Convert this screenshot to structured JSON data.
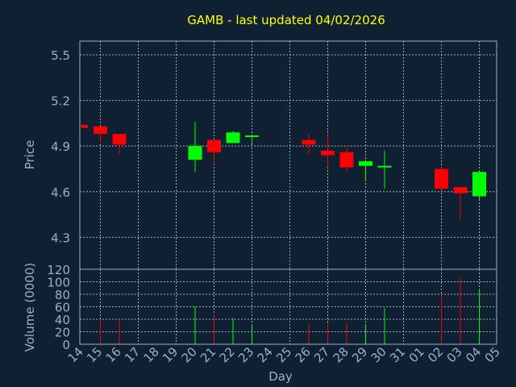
{
  "colors": {
    "background": "#0f2033",
    "plot_border": "#9bb0c8",
    "grid": "#9bb0c8",
    "title": "#ffff00",
    "axis_text": "#9bb0c8",
    "up": "#00ff00",
    "down": "#ff0000"
  },
  "chart_data": [
    {
      "type": "candlestick",
      "title": "GAMB - last updated 04/02/2026",
      "ylabel": "Price",
      "ylim": [
        4.09,
        5.59
      ],
      "yticks": [
        "4.3",
        "4.6",
        "4.9",
        "5.2",
        "5.5"
      ],
      "grid": true,
      "days": [
        "14",
        "15",
        "16",
        "17",
        "18",
        "19",
        "20",
        "21",
        "22",
        "23",
        "24",
        "25",
        "26",
        "27",
        "28",
        "29",
        "30",
        "31",
        "01",
        "02",
        "03",
        "04",
        "05"
      ],
      "candles": [
        {
          "day": "14",
          "open": 5.04,
          "close": 5.02,
          "high": 5.04,
          "low": 5.02
        },
        {
          "day": "15",
          "open": 5.03,
          "close": 4.98,
          "high": 5.03,
          "low": 4.92
        },
        {
          "day": "16",
          "open": 4.98,
          "close": 4.91,
          "high": 4.98,
          "low": 4.85
        },
        {
          "day": "20",
          "open": 4.81,
          "close": 4.9,
          "high": 5.06,
          "low": 4.73
        },
        {
          "day": "21",
          "open": 4.94,
          "close": 4.86,
          "high": 4.94,
          "low": 4.78
        },
        {
          "day": "22",
          "open": 4.92,
          "close": 4.99,
          "high": 5.0,
          "low": 4.92
        },
        {
          "day": "23",
          "open": 4.96,
          "close": 4.97,
          "high": 4.97,
          "low": 4.91
        },
        {
          "day": "26",
          "open": 4.94,
          "close": 4.91,
          "high": 4.98,
          "low": 4.85
        },
        {
          "day": "27",
          "open": 4.87,
          "close": 4.84,
          "high": 4.97,
          "low": 4.76
        },
        {
          "day": "28",
          "open": 4.86,
          "close": 4.76,
          "high": 4.89,
          "low": 4.73
        },
        {
          "day": "29",
          "open": 4.77,
          "close": 4.8,
          "high": 4.81,
          "low": 4.68
        },
        {
          "day": "30",
          "open": 4.76,
          "close": 4.77,
          "high": 4.87,
          "low": 4.62
        },
        {
          "day": "02",
          "open": 4.75,
          "close": 4.62,
          "high": 4.76,
          "low": 4.61
        },
        {
          "day": "03",
          "open": 4.63,
          "close": 4.59,
          "high": 4.63,
          "low": 4.42
        },
        {
          "day": "04",
          "open": 4.57,
          "close": 4.73,
          "high": 4.73,
          "low": 4.55
        }
      ]
    },
    {
      "type": "bar",
      "xlabel": "Day",
      "ylabel": "Volume (0000)",
      "ylim": [
        0,
        120
      ],
      "yticks": [
        "0",
        "20",
        "40",
        "60",
        "80",
        "100",
        "120"
      ],
      "xticks": [
        "14",
        "15",
        "16",
        "17",
        "18",
        "19",
        "20",
        "21",
        "22",
        "23",
        "24",
        "25",
        "26",
        "27",
        "28",
        "29",
        "30",
        "31",
        "01",
        "02",
        "03",
        "04",
        "05"
      ],
      "bars": [
        {
          "day": "15",
          "value": 40,
          "dir": "down"
        },
        {
          "day": "16",
          "value": 42,
          "dir": "down"
        },
        {
          "day": "20",
          "value": 60,
          "dir": "up"
        },
        {
          "day": "21",
          "value": 48,
          "dir": "down"
        },
        {
          "day": "22",
          "value": 42,
          "dir": "up"
        },
        {
          "day": "23",
          "value": 32,
          "dir": "up"
        },
        {
          "day": "26",
          "value": 32,
          "dir": "down"
        },
        {
          "day": "27",
          "value": 34,
          "dir": "down"
        },
        {
          "day": "28",
          "value": 34,
          "dir": "down"
        },
        {
          "day": "29",
          "value": 32,
          "dir": "up"
        },
        {
          "day": "30",
          "value": 58,
          "dir": "up"
        },
        {
          "day": "02",
          "value": 78,
          "dir": "down"
        },
        {
          "day": "03",
          "value": 105,
          "dir": "down"
        },
        {
          "day": "04",
          "value": 88,
          "dir": "up"
        }
      ]
    }
  ]
}
